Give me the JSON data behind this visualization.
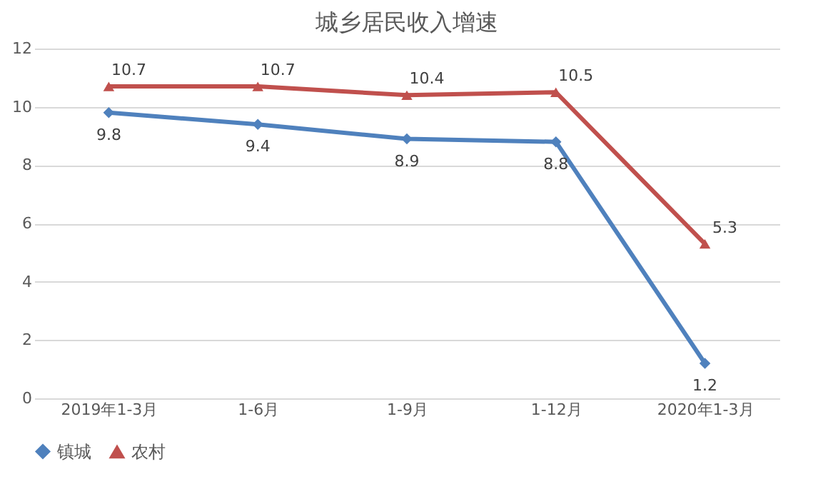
{
  "chart_data": {
    "type": "line",
    "title": "城乡居民收入增速",
    "categories": [
      "2019年1-3月",
      "1-6月",
      "1-9月",
      "1-12月",
      "2020年1-3月"
    ],
    "series": [
      {
        "name": "镇城",
        "color": "#4f81bd",
        "marker": "diamond",
        "values": [
          9.8,
          9.4,
          8.9,
          8.8,
          1.2
        ]
      },
      {
        "name": "农村",
        "color": "#c0504d",
        "marker": "triangle",
        "values": [
          10.7,
          10.7,
          10.4,
          10.5,
          5.3
        ]
      }
    ],
    "ylim": [
      0,
      12
    ],
    "yticks": [
      0,
      2,
      4,
      6,
      8,
      10,
      12
    ],
    "grid": "y",
    "legend": "bottom",
    "data_labels": true
  }
}
